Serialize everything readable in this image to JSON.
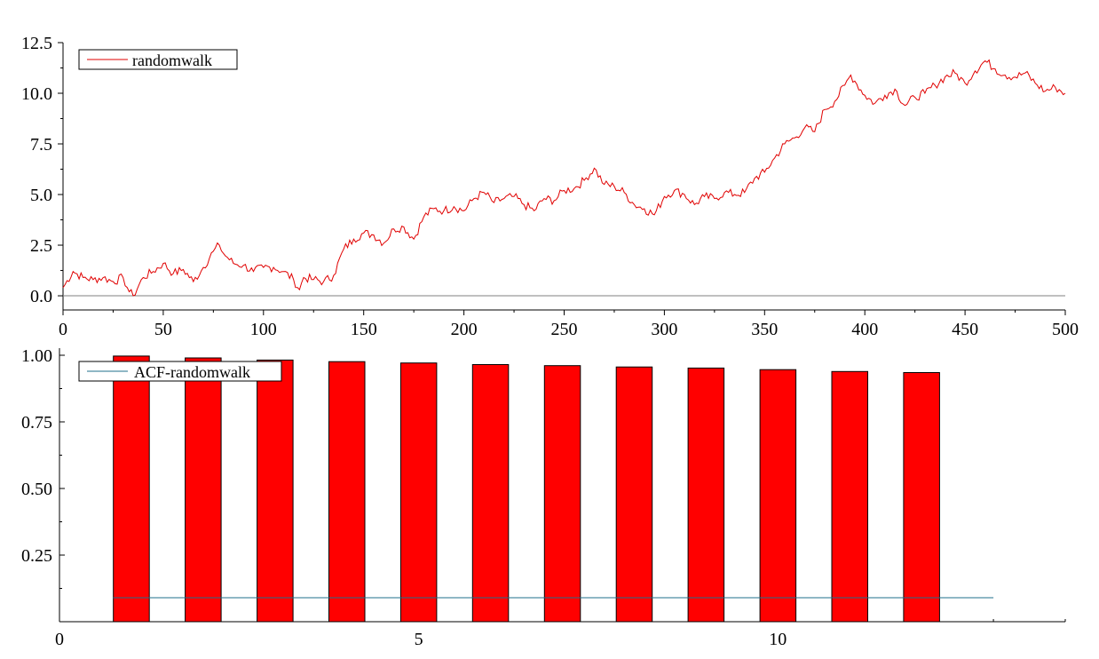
{
  "chart_data": [
    {
      "type": "line",
      "title": "",
      "xlabel": "",
      "ylabel": "",
      "xlim": [
        0,
        500
      ],
      "ylim": [
        -0.7,
        12.5
      ],
      "x_ticks": [
        "0",
        "50",
        "100",
        "150",
        "200",
        "250",
        "300",
        "350",
        "400",
        "450",
        "500"
      ],
      "y_ticks": [
        "0.0",
        "2.5",
        "5.0",
        "7.5",
        "10.0",
        "12.5"
      ],
      "x_tick_values": [
        0,
        50,
        100,
        150,
        200,
        250,
        300,
        350,
        400,
        450,
        500
      ],
      "y_tick_values": [
        0,
        2.5,
        5,
        7.5,
        10,
        12.5
      ],
      "grid": false,
      "legend_position": "top-left",
      "reference_line": {
        "y": 0,
        "color": "#808080"
      },
      "series": [
        {
          "name": "randomwalk",
          "color": "#e00000",
          "x": [
            0,
            5,
            10,
            15,
            20,
            25,
            30,
            33,
            35,
            40,
            45,
            50,
            55,
            60,
            65,
            70,
            75,
            78,
            80,
            85,
            90,
            95,
            100,
            105,
            110,
            115,
            118,
            120,
            125,
            130,
            135,
            140,
            145,
            150,
            155,
            160,
            165,
            170,
            175,
            180,
            185,
            190,
            195,
            200,
            205,
            210,
            215,
            220,
            225,
            230,
            235,
            240,
            245,
            250,
            255,
            260,
            265,
            270,
            275,
            280,
            285,
            290,
            295,
            300,
            305,
            310,
            315,
            320,
            325,
            330,
            335,
            340,
            345,
            350,
            355,
            360,
            365,
            370,
            375,
            380,
            385,
            390,
            393,
            395,
            400,
            405,
            410,
            415,
            420,
            425,
            430,
            435,
            440,
            445,
            450,
            455,
            460,
            465,
            470,
            475,
            480,
            485,
            490,
            495,
            500
          ],
          "y": [
            0.4,
            1.2,
            0.9,
            0.8,
            0.9,
            0.7,
            0.9,
            0.2,
            0.0,
            0.9,
            1.2,
            1.6,
            1.1,
            1.3,
            0.7,
            1.4,
            2.2,
            2.5,
            2.1,
            1.6,
            1.5,
            1.2,
            1.4,
            1.4,
            1.2,
            0.8,
            0.3,
            0.9,
            0.8,
            0.7,
            1.0,
            2.3,
            2.8,
            3.1,
            3.0,
            2.6,
            3.3,
            3.4,
            2.8,
            3.9,
            4.3,
            4.2,
            4.4,
            4.2,
            4.8,
            5.1,
            4.6,
            4.8,
            4.9,
            4.5,
            4.2,
            4.8,
            4.7,
            5.2,
            5.3,
            5.7,
            6.3,
            5.5,
            5.4,
            5.1,
            4.5,
            4.3,
            4.0,
            4.9,
            5.2,
            5.0,
            4.5,
            4.9,
            4.8,
            5.1,
            5.0,
            5.1,
            5.8,
            6.1,
            6.8,
            7.5,
            7.8,
            8.3,
            8.1,
            9.2,
            9.6,
            10.4,
            10.9,
            10.6,
            9.9,
            9.5,
            9.9,
            10.2,
            9.4,
            9.8,
            10.0,
            10.4,
            10.8,
            11.0,
            10.5,
            11.1,
            11.6,
            11.2,
            10.9,
            10.8,
            11.0,
            10.5,
            10.1,
            10.3,
            10.0
          ]
        }
      ]
    },
    {
      "type": "bar",
      "title": "",
      "xlabel": "",
      "ylabel": "",
      "xlim": [
        0,
        14
      ],
      "ylim": [
        0,
        1.0
      ],
      "x_ticks": [
        "0",
        "5",
        "10"
      ],
      "y_ticks": [
        "0.25",
        "0.50",
        "0.75",
        "1.00"
      ],
      "x_tick_values": [
        0,
        5,
        10
      ],
      "y_tick_values": [
        0.25,
        0.5,
        0.75,
        1.0
      ],
      "grid": false,
      "legend_position": "top-left",
      "reference_line": {
        "y": 0.09,
        "x_end": 13,
        "color": "#1f6f8b"
      },
      "categories": [
        1,
        2,
        3,
        4,
        5,
        6,
        7,
        8,
        9,
        10,
        11,
        12
      ],
      "series": [
        {
          "name": "ACF-randomwalk",
          "color": "#ff0000",
          "values": [
            0.997,
            0.99,
            0.982,
            0.976,
            0.971,
            0.965,
            0.961,
            0.956,
            0.952,
            0.946,
            0.939,
            0.935
          ]
        }
      ]
    }
  ]
}
